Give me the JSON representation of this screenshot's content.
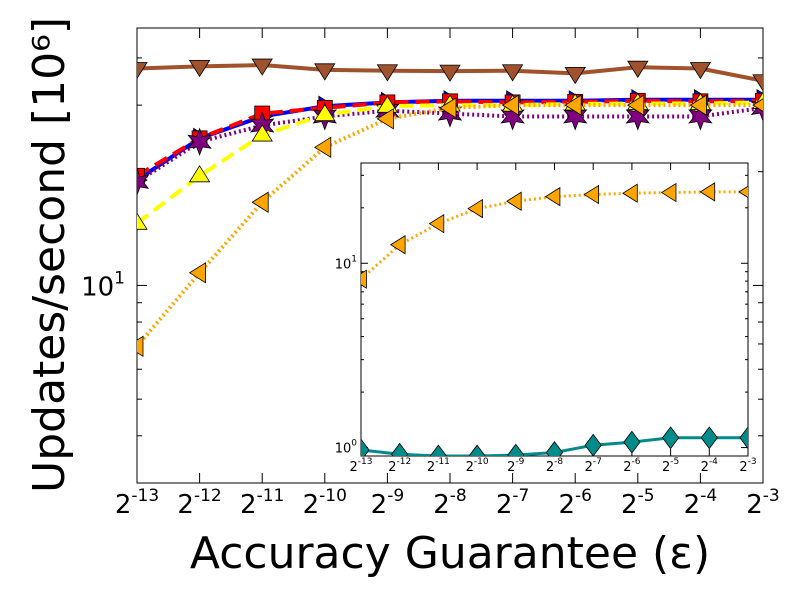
{
  "chart_data": [
    {
      "type": "line",
      "xlabel": "Accuracy Guarantee (ε)",
      "ylabel": "Updates/second [10⁶]",
      "x_scale": "log2",
      "y_scale": "log",
      "x": [
        0.0001220703125,
        0.000244140625,
        0.00048828125,
        0.0009765625,
        0.001953125,
        0.00390625,
        0.0078125,
        0.015625,
        0.03125,
        0.0625,
        0.125
      ],
      "xticklabels": [
        {
          "base": "2",
          "exp": "-13"
        },
        {
          "base": "2",
          "exp": "-12"
        },
        {
          "base": "2",
          "exp": "-11"
        },
        {
          "base": "2",
          "exp": "-10"
        },
        {
          "base": "2",
          "exp": "-9"
        },
        {
          "base": "2",
          "exp": "-8"
        },
        {
          "base": "2",
          "exp": "-7"
        },
        {
          "base": "2",
          "exp": "-6"
        },
        {
          "base": "2",
          "exp": "-5"
        },
        {
          "base": "2",
          "exp": "-4"
        },
        {
          "base": "2",
          "exp": "-3"
        }
      ],
      "ytick_major": {
        "value": 10,
        "base": "10",
        "exp": "1"
      },
      "ylim": [
        3.0,
        48.0
      ],
      "series": [
        {
          "color": "#a0522d",
          "marker": "triangle-down",
          "linestyle": "solid",
          "values": [
            37.5,
            38.0,
            38.3,
            37.2,
            37.0,
            36.9,
            37.0,
            36.4,
            37.8,
            37.5,
            34.8
          ]
        },
        {
          "color": "#0000ff",
          "marker": "triangle-right",
          "linestyle": "solid",
          "values": [
            19.0,
            24.5,
            28.0,
            29.8,
            30.5,
            30.8,
            30.8,
            30.8,
            31.0,
            31.0,
            31.0
          ]
        },
        {
          "color": "#ff0000",
          "marker": "square",
          "linestyle": "dashed",
          "values": [
            19.5,
            24.5,
            28.5,
            29.5,
            30.5,
            30.7,
            30.5,
            30.6,
            30.8,
            30.7,
            30.8
          ]
        },
        {
          "color": "#800080",
          "marker": "star",
          "linestyle": "dotted",
          "values": [
            18.8,
            24.0,
            26.5,
            28.0,
            29.0,
            28.5,
            28.0,
            28.0,
            28.0,
            28.0,
            29.5
          ]
        },
        {
          "color": "#ffff00",
          "marker": "triangle-up",
          "linestyle": "dashed",
          "values": [
            14.6,
            19.5,
            25.0,
            28.3,
            29.8,
            30.0,
            30.0,
            30.2,
            30.3,
            30.3,
            30.5
          ]
        },
        {
          "color": "#ffa500",
          "marker": "triangle-left",
          "linestyle": "dotted",
          "values": [
            6.9,
            10.8,
            16.6,
            23.2,
            27.6,
            29.5,
            30.0,
            30.0,
            30.0,
            30.0,
            30.0
          ]
        }
      ]
    },
    {
      "type": "line",
      "inset": true,
      "x_scale": "log2",
      "y_scale": "log",
      "x": [
        0.0001220703125,
        0.000244140625,
        0.00048828125,
        0.0009765625,
        0.001953125,
        0.00390625,
        0.0078125,
        0.015625,
        0.03125,
        0.0625,
        0.125
      ],
      "xticklabels": [
        {
          "base": "2",
          "exp": "-13"
        },
        {
          "base": "2",
          "exp": "-12"
        },
        {
          "base": "2",
          "exp": "-11"
        },
        {
          "base": "2",
          "exp": "-10"
        },
        {
          "base": "2",
          "exp": "-9"
        },
        {
          "base": "2",
          "exp": "-8"
        },
        {
          "base": "2",
          "exp": "-7"
        },
        {
          "base": "2",
          "exp": "-6"
        },
        {
          "base": "2",
          "exp": "-5"
        },
        {
          "base": "2",
          "exp": "-4"
        },
        {
          "base": "2",
          "exp": "-3"
        }
      ],
      "yticks": [
        {
          "value": 1,
          "base": "10",
          "exp": "0"
        },
        {
          "value": 10,
          "base": "10",
          "exp": "1"
        }
      ],
      "ylim": [
        0.9,
        35.0
      ],
      "series": [
        {
          "color": "#ffa500",
          "marker": "triangle-left",
          "linestyle": "dotted",
          "values": [
            8.2,
            12.6,
            16.4,
            19.8,
            21.7,
            23.0,
            23.6,
            24.0,
            24.2,
            24.4,
            24.4
          ]
        },
        {
          "color": "#008b8b",
          "marker": "diamond",
          "linestyle": "solid",
          "values": [
            0.97,
            0.92,
            0.9,
            0.9,
            0.91,
            0.94,
            1.03,
            1.07,
            1.13,
            1.13,
            1.13
          ]
        }
      ]
    }
  ]
}
